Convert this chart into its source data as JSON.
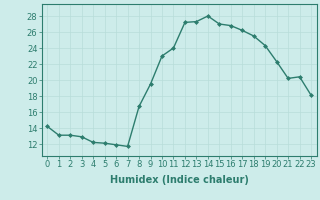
{
  "x": [
    0,
    1,
    2,
    3,
    4,
    5,
    6,
    7,
    8,
    9,
    10,
    11,
    12,
    13,
    14,
    15,
    16,
    17,
    18,
    19,
    20,
    21,
    22,
    23
  ],
  "y": [
    14.2,
    13.1,
    13.1,
    12.9,
    12.2,
    12.1,
    11.9,
    11.7,
    16.7,
    19.5,
    23.0,
    24.0,
    27.2,
    27.3,
    28.0,
    27.0,
    26.8,
    26.2,
    25.5,
    24.3,
    22.3,
    20.2,
    20.4,
    18.1
  ],
  "line_color": "#2d7d6e",
  "marker": "D",
  "marker_size": 2.0,
  "bg_color": "#cdecea",
  "grid_color": "#b8ddd9",
  "xlabel": "Humidex (Indice chaleur)",
  "xlim": [
    -0.5,
    23.5
  ],
  "ylim": [
    10.5,
    29.5
  ],
  "yticks": [
    12,
    14,
    16,
    18,
    20,
    22,
    24,
    26,
    28
  ],
  "xticks": [
    0,
    1,
    2,
    3,
    4,
    5,
    6,
    7,
    8,
    9,
    10,
    11,
    12,
    13,
    14,
    15,
    16,
    17,
    18,
    19,
    20,
    21,
    22,
    23
  ],
  "tick_color": "#2d7d6e",
  "label_fontsize": 6,
  "xlabel_fontsize": 7,
  "line_width": 1.0
}
